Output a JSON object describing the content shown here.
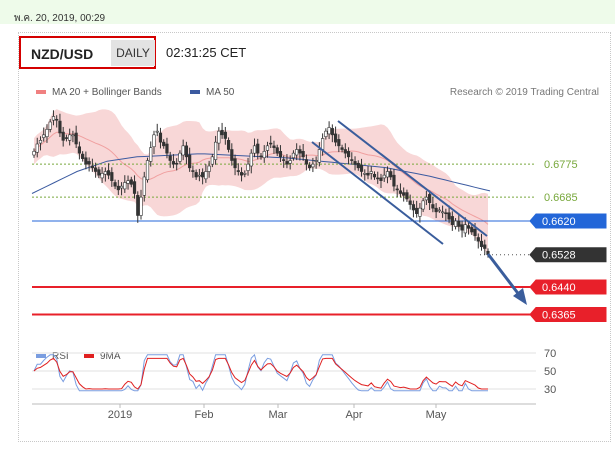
{
  "header": {
    "datetime": "พ.ค. 20, 2019, 00:29",
    "pair": "NZD/USD",
    "timeframe": "DAILY",
    "clock": "02:31:25 CET",
    "legend_ma20": "MA 20 + Bollinger Bands",
    "legend_ma50": "MA 50",
    "credit": "Research © 2019 Trading Central",
    "legend_rsi": "RSI",
    "legend_9ma": "9MA"
  },
  "colors": {
    "bollinger": "#f5c9c9",
    "ma50": "#3b5aa0",
    "candle": "#333333",
    "support_red": "#e8202a",
    "blue_level": "#2366d8",
    "green_level": "#78a83c",
    "current": "#333333",
    "trend": "#3a5d9c",
    "rsi": "#7a9de0",
    "ma9": "#e02020"
  },
  "chart_data": {
    "type": "candlestick",
    "x_labels": [
      "2019",
      "Feb",
      "Mar",
      "Apr",
      "May"
    ],
    "levels": [
      {
        "value": 0.6775,
        "label": "0.6775",
        "style": "green-dotted"
      },
      {
        "value": 0.6685,
        "label": "0.6685",
        "style": "green-dotted"
      },
      {
        "value": 0.662,
        "label": "0.6620",
        "style": "blue"
      },
      {
        "value": 0.6528,
        "label": "0.6528",
        "style": "current"
      },
      {
        "value": 0.644,
        "label": "0.6440",
        "style": "red"
      },
      {
        "value": 0.6365,
        "label": "0.6365",
        "style": "red"
      }
    ],
    "close": [
      0.681,
      0.683,
      0.684,
      0.6855,
      0.687,
      0.689,
      0.6905,
      0.6895,
      0.686,
      0.684,
      0.6845,
      0.6855,
      0.6855,
      0.683,
      0.6805,
      0.679,
      0.6775,
      0.6775,
      0.6765,
      0.6755,
      0.6745,
      0.675,
      0.6755,
      0.6745,
      0.673,
      0.6715,
      0.6705,
      0.6715,
      0.6725,
      0.673,
      0.672,
      0.6695,
      0.6635,
      0.6685,
      0.674,
      0.6785,
      0.682,
      0.6855,
      0.6865,
      0.6835,
      0.6825,
      0.6805,
      0.6785,
      0.6775,
      0.6775,
      0.6805,
      0.6825,
      0.6795,
      0.6765,
      0.6755,
      0.674,
      0.6745,
      0.674,
      0.6755,
      0.677,
      0.6795,
      0.6835,
      0.6865,
      0.6855,
      0.6845,
      0.6815,
      0.6785,
      0.6765,
      0.6755,
      0.6745,
      0.675,
      0.6775,
      0.6805,
      0.6825,
      0.6805,
      0.6795,
      0.681,
      0.6825,
      0.683,
      0.682,
      0.6805,
      0.6795,
      0.6785,
      0.6775,
      0.6785,
      0.6805,
      0.6815,
      0.6805,
      0.6795,
      0.6775,
      0.6765,
      0.6775,
      0.6785,
      0.6815,
      0.6845,
      0.6865,
      0.6875,
      0.6855,
      0.6835,
      0.6825,
      0.6815,
      0.6805,
      0.6795,
      0.6785,
      0.6775,
      0.6765,
      0.6755,
      0.675,
      0.6745,
      0.6755,
      0.674,
      0.6735,
      0.673,
      0.6745,
      0.6755,
      0.674,
      0.6715,
      0.6705,
      0.6695,
      0.669,
      0.668,
      0.6665,
      0.665,
      0.664,
      0.6655,
      0.6675,
      0.6685,
      0.667,
      0.6655,
      0.6645,
      0.665,
      0.6645,
      0.664,
      0.6625,
      0.661,
      0.662,
      0.6605,
      0.6595,
      0.661,
      0.66,
      0.659,
      0.658,
      0.6565,
      0.655,
      0.6545,
      0.6528
    ],
    "ma50": [
      0.6695,
      0.6705,
      0.6715,
      0.6725,
      0.6735,
      0.6745,
      0.6755,
      0.6762,
      0.6769,
      0.6776,
      0.6783,
      0.6786,
      0.6789,
      0.6792,
      0.6795,
      0.6796,
      0.6797,
      0.6798,
      0.6799,
      0.68,
      0.6801,
      0.6802,
      0.6803,
      0.6803,
      0.6802,
      0.6801,
      0.68,
      0.6799,
      0.6798,
      0.6797,
      0.6796,
      0.6795,
      0.6794,
      0.6793,
      0.6792,
      0.679,
      0.6788,
      0.6786,
      0.6784,
      0.6782,
      0.678,
      0.6778,
      0.6776,
      0.6774,
      0.6772,
      0.677,
      0.6768,
      0.6766,
      0.6762,
      0.6758,
      0.6754,
      0.675,
      0.6746,
      0.6742,
      0.6737,
      0.6732,
      0.6727,
      0.6722,
      0.6717,
      0.6712,
      0.6707,
      0.6702
    ],
    "rsi_axis": [
      70,
      50,
      30
    ]
  }
}
